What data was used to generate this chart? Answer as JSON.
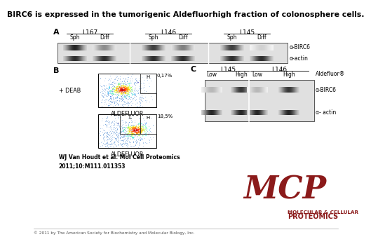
{
  "title": "BIRC6 is expressed in the tumorigenic Aldefluorhigh fraction of colonosphere cells.",
  "bg_color": "#ffffff",
  "panel_A": {
    "label": "A",
    "group_labels": [
      "L167",
      "L146",
      "L145"
    ],
    "col_labels": [
      "Sph",
      "Diff",
      "Sph",
      "Diff",
      "Sph",
      "Diff"
    ],
    "band1_label": "α-BIRC6",
    "band2_label": "α-actin",
    "band1_intensities": [
      0.85,
      0.45,
      0.75,
      0.5,
      0.75,
      0.18
    ],
    "band2_intensities": [
      0.82,
      0.82,
      0.82,
      0.82,
      0.82,
      0.82
    ]
  },
  "panel_B": {
    "label": "B",
    "deab_label": "+ DEAB",
    "top_percent": "0,17%",
    "bottom_percent": "18,5%",
    "x_label": "ALDEFLUOR"
  },
  "panel_C": {
    "label": "C",
    "l145_label": "L145",
    "l146_label": "L146",
    "col_labels": [
      "Low",
      "High",
      "Low",
      "High"
    ],
    "aldefluor_label": "Aldefluor®",
    "band1_label": "α-BIRC6",
    "band2_label": "α- actin",
    "band1_intensities": [
      0.28,
      0.78,
      0.28,
      0.78
    ],
    "band2_intensities": [
      0.85,
      0.85,
      0.85,
      0.85
    ]
  },
  "citation_bold": "WJ Van Houdt et al. Mol Cell Proteomics\n2011;10:M111.011353",
  "copyright": "© 2011 by The American Society for Biochemistry and Molecular Biology, Inc.",
  "mcp_color": "#8b1a1a",
  "mcp_text": "MCP",
  "mcp_sub1": "MOLECULAR & CELLULAR",
  "mcp_sub2": "PROTEOMICS"
}
